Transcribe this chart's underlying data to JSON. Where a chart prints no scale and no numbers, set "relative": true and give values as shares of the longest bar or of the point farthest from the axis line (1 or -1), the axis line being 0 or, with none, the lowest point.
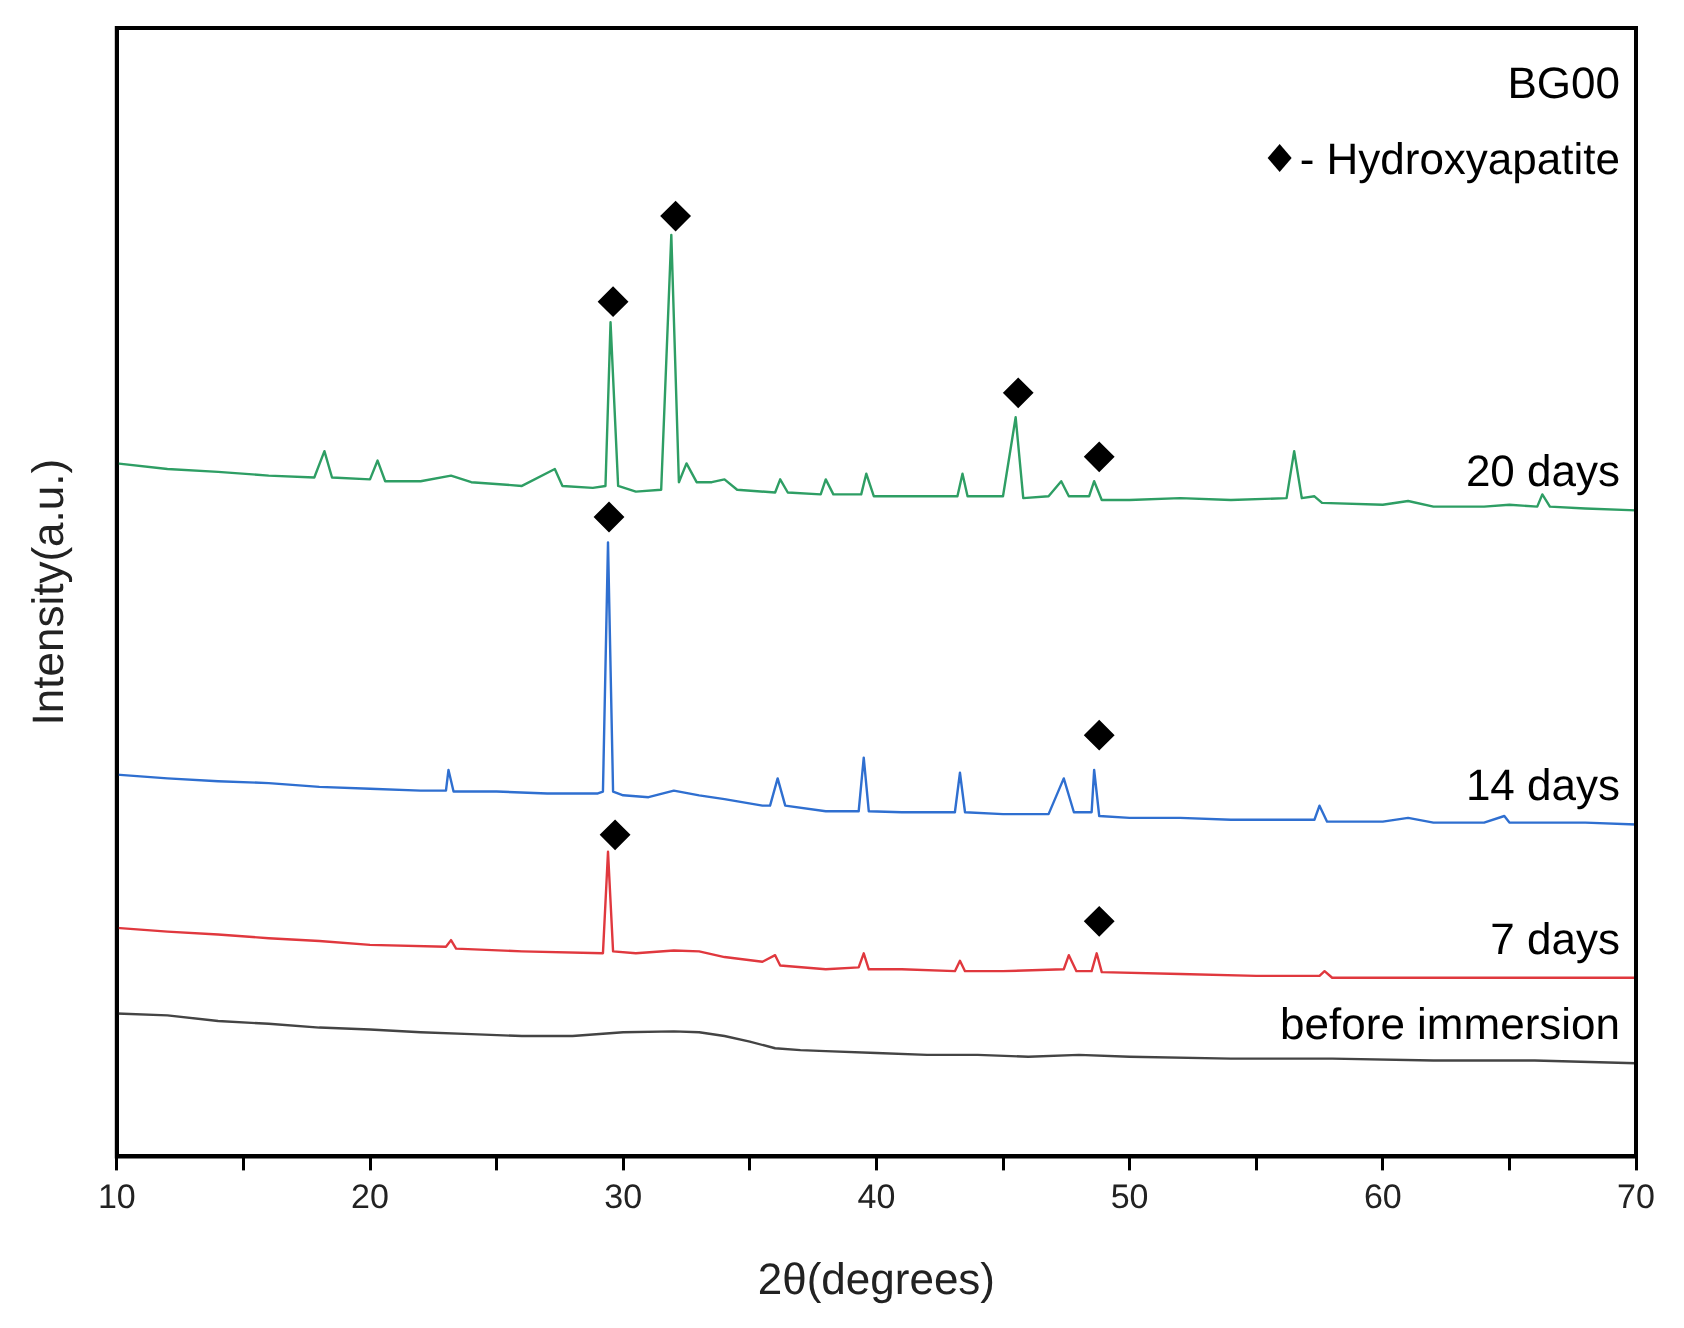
{
  "chart_data": {
    "type": "line",
    "xlabel": "2θ(degrees)",
    "ylabel": "Intensity(a.u.)",
    "relative": true,
    "legend_title": "BG00",
    "legend": "top right",
    "grid": false,
    "marker": "none",
    "line_style": "solid",
    "xlim": [
      10,
      70
    ],
    "xticks": [
      10,
      {
        "value": 15,
        "label": null
      },
      20,
      {
        "value": 25,
        "label": null
      },
      30,
      {
        "value": 35,
        "label": null
      },
      40,
      {
        "value": 45,
        "label": null
      },
      50,
      {
        "value": 55,
        "label": null
      },
      60,
      {
        "value": 65,
        "label": null
      },
      70
    ],
    "series": [
      {
        "name": "20 days",
        "color": "#2e9e64",
        "x": [
          10,
          12,
          14,
          16,
          17.8,
          18.2,
          18.5,
          20,
          20.3,
          20.6,
          22,
          23.2,
          24,
          26,
          27.3,
          27.6,
          28.8,
          29.3,
          29.5,
          29.8,
          30.5,
          31.5,
          31.9,
          32.2,
          32.5,
          32.9,
          33.5,
          34,
          34.5,
          36,
          36.2,
          36.5,
          37.8,
          38,
          38.3,
          39.4,
          39.6,
          39.9,
          41,
          43.2,
          43.4,
          43.6,
          45,
          45.5,
          45.8,
          46.8,
          47.3,
          47.6,
          48.4,
          48.6,
          48.9,
          50,
          52,
          54,
          56.2,
          56.5,
          56.8,
          57.3,
          57.6,
          60,
          61,
          62,
          64,
          65,
          66.1,
          66.3,
          66.6,
          68,
          70
        ],
        "values": [
          0.737,
          0.731,
          0.728,
          0.724,
          0.722,
          0.75,
          0.722,
          0.72,
          0.74,
          0.718,
          0.718,
          0.724,
          0.717,
          0.713,
          0.731,
          0.713,
          0.711,
          0.713,
          0.887,
          0.713,
          0.707,
          0.709,
          0.98,
          0.717,
          0.737,
          0.717,
          0.717,
          0.72,
          0.709,
          0.706,
          0.72,
          0.706,
          0.704,
          0.72,
          0.704,
          0.704,
          0.726,
          0.702,
          0.702,
          0.702,
          0.726,
          0.702,
          0.702,
          0.786,
          0.7,
          0.702,
          0.718,
          0.702,
          0.702,
          0.718,
          0.698,
          0.698,
          0.7,
          0.698,
          0.7,
          0.75,
          0.7,
          0.702,
          0.695,
          0.693,
          0.697,
          0.691,
          0.691,
          0.693,
          0.691,
          0.704,
          0.691,
          0.689,
          0.687
        ]
      },
      {
        "name": "14 days",
        "color": "#2f6fd0",
        "x": [
          10,
          12,
          14,
          16,
          18,
          20,
          22,
          23,
          23.1,
          23.3,
          25,
          27,
          29,
          29.2,
          29.4,
          29.6,
          30,
          31,
          32,
          33,
          34,
          35.5,
          35.8,
          36.1,
          36.4,
          38,
          39.3,
          39.5,
          39.7,
          41,
          43.1,
          43.3,
          43.5,
          45,
          46.8,
          47.4,
          47.8,
          48.5,
          48.6,
          48.8,
          50,
          52,
          54,
          56,
          57.3,
          57.5,
          57.8,
          60,
          61,
          62,
          64,
          64.8,
          65,
          68,
          70
        ],
        "values": [
          0.406,
          0.402,
          0.399,
          0.397,
          0.393,
          0.391,
          0.389,
          0.389,
          0.411,
          0.388,
          0.388,
          0.386,
          0.386,
          0.388,
          0.653,
          0.388,
          0.384,
          0.382,
          0.389,
          0.384,
          0.38,
          0.373,
          0.373,
          0.402,
          0.373,
          0.367,
          0.367,
          0.424,
          0.367,
          0.366,
          0.366,
          0.408,
          0.366,
          0.364,
          0.364,
          0.402,
          0.366,
          0.366,
          0.411,
          0.362,
          0.36,
          0.36,
          0.358,
          0.358,
          0.358,
          0.373,
          0.356,
          0.356,
          0.36,
          0.355,
          0.355,
          0.362,
          0.355,
          0.355,
          0.353
        ]
      },
      {
        "name": "7 days",
        "color": "#e0383e",
        "x": [
          10,
          12,
          14,
          16,
          18,
          20,
          23,
          23.2,
          23.4,
          26,
          29.2,
          29.4,
          29.6,
          30.5,
          32,
          33,
          34,
          35.5,
          36,
          36.2,
          38,
          39.3,
          39.5,
          39.7,
          41,
          43.1,
          43.3,
          43.5,
          45,
          47.4,
          47.6,
          47.9,
          48.5,
          48.7,
          48.9,
          52,
          55,
          57.5,
          57.7,
          58,
          61,
          63,
          66,
          70
        ],
        "values": [
          0.243,
          0.239,
          0.236,
          0.232,
          0.229,
          0.225,
          0.223,
          0.23,
          0.221,
          0.218,
          0.216,
          0.324,
          0.218,
          0.216,
          0.219,
          0.218,
          0.212,
          0.207,
          0.214,
          0.203,
          0.199,
          0.201,
          0.216,
          0.199,
          0.199,
          0.197,
          0.208,
          0.197,
          0.197,
          0.199,
          0.214,
          0.197,
          0.197,
          0.216,
          0.196,
          0.194,
          0.192,
          0.192,
          0.197,
          0.19,
          0.19,
          0.19,
          0.19,
          0.19
        ]
      },
      {
        "name": "before immersion",
        "color": "#444444",
        "x": [
          10,
          12,
          14,
          16,
          18,
          20,
          22,
          24,
          26,
          28,
          30,
          32,
          33,
          34,
          35,
          36,
          37,
          38,
          40,
          42,
          44,
          46,
          48,
          50,
          54,
          58,
          62,
          66,
          70
        ],
        "values": [
          0.152,
          0.15,
          0.144,
          0.141,
          0.137,
          0.135,
          0.132,
          0.13,
          0.128,
          0.128,
          0.132,
          0.133,
          0.132,
          0.128,
          0.122,
          0.115,
          0.113,
          0.112,
          0.11,
          0.108,
          0.108,
          0.106,
          0.108,
          0.106,
          0.104,
          0.104,
          0.102,
          0.102,
          0.099
        ]
      },
      {
        "name": "- Hydroxyapatite",
        "type": "scatter",
        "marker": "diamond",
        "color": "#000000",
        "x": [
          29.6,
          32.07,
          45.6,
          48.8,
          29.44,
          48.8,
          29.68,
          48.8
        ],
        "values": [
          0.909,
          1,
          0.812,
          0.744,
          0.68,
          0.448,
          0.342,
          0.25
        ]
      }
    ]
  }
}
